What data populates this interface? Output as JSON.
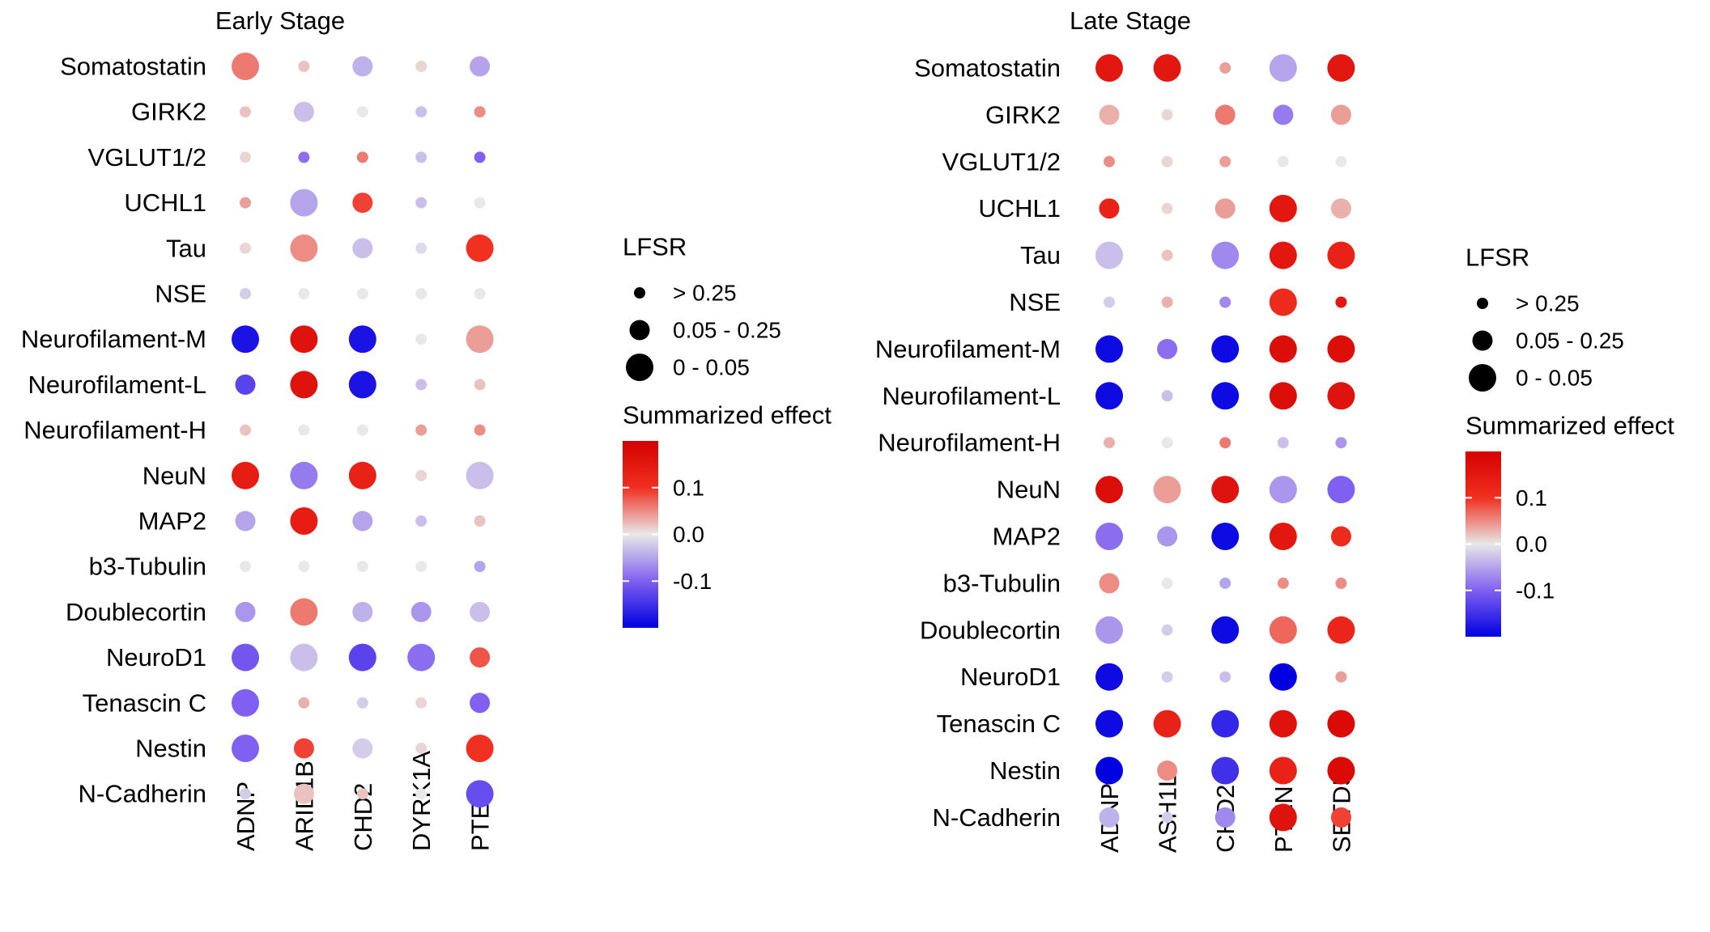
{
  "chart_data": [
    {
      "type": "bubble-heatmap",
      "title": "Early Stage",
      "columns": [
        "ADNP",
        "ARID1B",
        "CHD2",
        "DYRK1A",
        "PTEN"
      ],
      "rows": [
        "Somatostatin",
        "GIRK2",
        "VGLUT1/2",
        "UCHL1",
        "Tau",
        "NSE",
        "Neurofilament-M",
        "Neurofilament-L",
        "Neurofilament-H",
        "NeuN",
        "MAP2",
        "b3-Tubulin",
        "Doublecortin",
        "NeuroD1",
        "Tenascin C",
        "Nestin",
        "N-Cadherin"
      ],
      "effect": [
        [
          0.06,
          0.02,
          -0.04,
          0.01,
          -0.05
        ],
        [
          0.02,
          -0.03,
          0.0,
          -0.03,
          0.05
        ],
        [
          0.01,
          -0.09,
          0.06,
          -0.03,
          -0.1
        ],
        [
          0.04,
          -0.05,
          0.09,
          -0.03,
          0.0
        ],
        [
          0.01,
          0.05,
          -0.03,
          -0.01,
          0.1
        ],
        [
          -0.02,
          0.0,
          0.0,
          0.0,
          0.0
        ],
        [
          -0.18,
          0.16,
          -0.18,
          0.0,
          0.04
        ],
        [
          -0.13,
          0.16,
          -0.18,
          -0.03,
          0.02
        ],
        [
          0.02,
          0.0,
          0.0,
          0.04,
          0.05
        ],
        [
          0.14,
          -0.08,
          0.13,
          0.01,
          -0.03
        ],
        [
          -0.05,
          0.14,
          -0.05,
          -0.03,
          0.02
        ],
        [
          0.0,
          0.0,
          0.0,
          0.0,
          -0.05
        ],
        [
          -0.06,
          0.06,
          -0.04,
          -0.06,
          -0.03
        ],
        [
          -0.11,
          -0.03,
          -0.13,
          -0.09,
          0.08
        ],
        [
          -0.1,
          0.03,
          -0.02,
          0.01,
          -0.1
        ],
        [
          -0.1,
          0.09,
          -0.02,
          0.01,
          0.1
        ],
        [
          -0.02,
          0.02,
          0.02,
          0.0,
          -0.12
        ]
      ],
      "lfsr_class": [
        [
          2,
          0,
          1,
          0,
          1
        ],
        [
          0,
          1,
          0,
          0,
          0
        ],
        [
          0,
          0,
          0,
          0,
          0
        ],
        [
          0,
          2,
          1,
          0,
          0
        ],
        [
          0,
          2,
          1,
          0,
          2
        ],
        [
          0,
          0,
          0,
          0,
          0
        ],
        [
          2,
          2,
          2,
          0,
          2
        ],
        [
          1,
          2,
          2,
          0,
          0
        ],
        [
          0,
          0,
          0,
          0,
          0
        ],
        [
          2,
          2,
          2,
          0,
          2
        ],
        [
          1,
          2,
          1,
          0,
          0
        ],
        [
          0,
          0,
          0,
          0,
          0
        ],
        [
          1,
          2,
          1,
          1,
          1
        ],
        [
          2,
          2,
          2,
          2,
          1
        ],
        [
          2,
          0,
          0,
          0,
          1
        ],
        [
          2,
          1,
          1,
          0,
          2
        ],
        [
          0,
          1,
          0,
          0,
          2
        ]
      ]
    },
    {
      "type": "bubble-heatmap",
      "title": "Late Stage",
      "columns": [
        "ADNP",
        "ASH1L",
        "CHD2",
        "PTEN",
        "SETD5"
      ],
      "rows": [
        "Somatostatin",
        "GIRK2",
        "VGLUT1/2",
        "UCHL1",
        "Tau",
        "NSE",
        "Neurofilament-M",
        "Neurofilament-L",
        "Neurofilament-H",
        "NeuN",
        "MAP2",
        "b3-Tubulin",
        "Doublecortin",
        "NeuroD1",
        "Tenascin C",
        "Nestin",
        "N-Cadherin"
      ],
      "effect": [
        [
          0.15,
          0.15,
          0.04,
          -0.05,
          0.15
        ],
        [
          0.03,
          0.01,
          0.06,
          -0.08,
          0.04
        ],
        [
          0.05,
          0.01,
          0.04,
          0.0,
          0.0
        ],
        [
          0.13,
          0.01,
          0.04,
          0.15,
          0.03
        ],
        [
          -0.03,
          0.02,
          -0.07,
          0.15,
          0.13
        ],
        [
          -0.02,
          0.03,
          -0.07,
          0.11,
          0.15
        ],
        [
          -0.19,
          -0.09,
          -0.19,
          0.17,
          0.17
        ],
        [
          -0.19,
          -0.03,
          -0.19,
          0.17,
          0.16
        ],
        [
          0.03,
          0.0,
          0.06,
          -0.03,
          -0.06
        ],
        [
          0.17,
          0.04,
          0.16,
          -0.06,
          -0.1
        ],
        [
          -0.09,
          -0.06,
          -0.19,
          0.15,
          0.11
        ],
        [
          0.05,
          0.0,
          -0.05,
          0.05,
          0.05
        ],
        [
          -0.06,
          -0.02,
          -0.19,
          0.07,
          0.12
        ],
        [
          -0.19,
          -0.02,
          -0.03,
          -0.2,
          0.04
        ],
        [
          -0.19,
          0.13,
          -0.16,
          0.16,
          0.18
        ],
        [
          -0.2,
          0.05,
          -0.15,
          0.13,
          0.18
        ],
        [
          -0.04,
          -0.02,
          -0.07,
          0.16,
          0.09
        ]
      ],
      "lfsr_class": [
        [
          2,
          2,
          0,
          2,
          2
        ],
        [
          1,
          0,
          1,
          1,
          1
        ],
        [
          0,
          0,
          0,
          0,
          0
        ],
        [
          1,
          0,
          1,
          2,
          1
        ],
        [
          2,
          0,
          2,
          2,
          2
        ],
        [
          0,
          0,
          0,
          2,
          0
        ],
        [
          2,
          1,
          2,
          2,
          2
        ],
        [
          2,
          0,
          2,
          2,
          2
        ],
        [
          0,
          0,
          0,
          0,
          0
        ],
        [
          2,
          2,
          2,
          2,
          2
        ],
        [
          2,
          1,
          2,
          2,
          1
        ],
        [
          1,
          0,
          0,
          0,
          0
        ],
        [
          2,
          0,
          2,
          2,
          2
        ],
        [
          2,
          0,
          0,
          2,
          0
        ],
        [
          2,
          2,
          2,
          2,
          2
        ],
        [
          2,
          1,
          2,
          2,
          2
        ],
        [
          1,
          0,
          1,
          2,
          1
        ]
      ]
    }
  ],
  "legend": {
    "size_title": "LFSR",
    "size_labels": [
      "> 0.25",
      "0.05 - 0.25",
      "0 - 0.05"
    ],
    "color_title": "Summarized effect",
    "color_ticks": [
      0.1,
      0.0,
      -0.1
    ],
    "color_tick_labels": [
      "0.1",
      "0.0",
      "-0.1"
    ],
    "colors": {
      "high": "#d40000",
      "mid": "#e8e8e8",
      "low": "#0000e0"
    }
  }
}
